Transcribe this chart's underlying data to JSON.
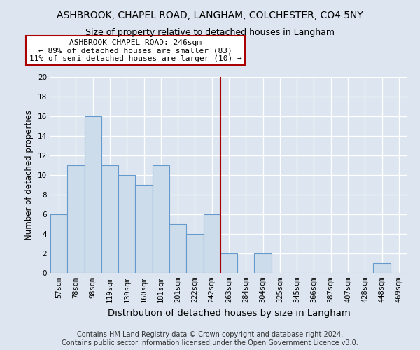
{
  "title1": "ASHBROOK, CHAPEL ROAD, LANGHAM, COLCHESTER, CO4 5NY",
  "title2": "Size of property relative to detached houses in Langham",
  "xlabel": "Distribution of detached houses by size in Langham",
  "ylabel": "Number of detached properties",
  "footnote": "Contains HM Land Registry data © Crown copyright and database right 2024.\nContains public sector information licensed under the Open Government Licence v3.0.",
  "bin_labels": [
    "57sqm",
    "78sqm",
    "98sqm",
    "119sqm",
    "139sqm",
    "160sqm",
    "181sqm",
    "201sqm",
    "222sqm",
    "242sqm",
    "263sqm",
    "284sqm",
    "304sqm",
    "325sqm",
    "345sqm",
    "366sqm",
    "387sqm",
    "407sqm",
    "428sqm",
    "448sqm",
    "469sqm"
  ],
  "bar_heights": [
    6,
    11,
    16,
    11,
    10,
    9,
    11,
    5,
    4,
    6,
    2,
    0,
    2,
    0,
    0,
    0,
    0,
    0,
    0,
    1,
    0
  ],
  "bar_color": "#cddceb",
  "bar_edgecolor": "#6699cc",
  "subject_line_bin": 9,
  "subject_line_color": "#aa0000",
  "annotation_text_line1": "ASHBROOK CHAPEL ROAD: 246sqm",
  "annotation_text_line2": "← 89% of detached houses are smaller (83)",
  "annotation_text_line3": "11% of semi-detached houses are larger (10) →",
  "ylim": [
    0,
    20
  ],
  "yticks": [
    0,
    2,
    4,
    6,
    8,
    10,
    12,
    14,
    16,
    18,
    20
  ],
  "background_color": "#dde6f0",
  "plot_background_color": "#dde6f0",
  "grid_color": "#ffffff",
  "title1_fontsize": 10,
  "title2_fontsize": 9,
  "ylabel_fontsize": 8.5,
  "xlabel_fontsize": 9.5,
  "footnote_fontsize": 7,
  "tick_fontsize": 7.5,
  "annot_fontsize": 8
}
